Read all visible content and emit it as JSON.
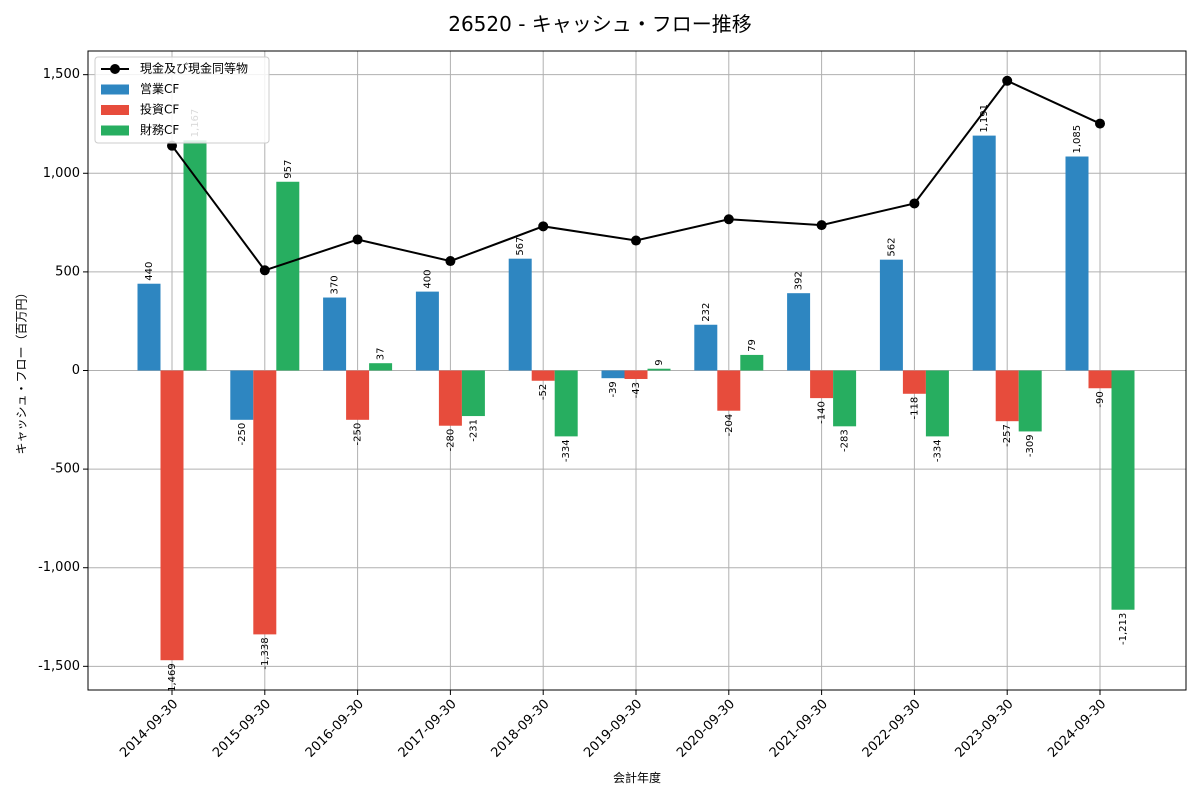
{
  "chart_data": {
    "type": "bar",
    "title": "26520 - キャッシュ・フロー推移",
    "xlabel": "会計年度",
    "ylabel": "キャッシュ・フロー（百万円）",
    "ylim": [
      -1620,
      1620
    ],
    "yticks": [
      -1500,
      -1000,
      -500,
      0,
      500,
      1000,
      1500
    ],
    "ytick_labels": [
      "-1,500",
      "-1,000",
      "-500",
      "0",
      "500",
      "1,000",
      "1,500"
    ],
    "grid": true,
    "legend_position": "top-left",
    "categories": [
      "2014-09-30",
      "2015-09-30",
      "2016-09-30",
      "2017-09-30",
      "2018-09-30",
      "2019-09-30",
      "2020-09-30",
      "2021-09-30",
      "2022-09-30",
      "2023-09-30",
      "2024-09-30"
    ],
    "series": [
      {
        "name": "営業CF",
        "kind": "bar",
        "color": "#2e86c1",
        "values": [
          440,
          -250,
          370,
          400,
          567,
          -39,
          232,
          392,
          562,
          1191,
          1085
        ],
        "labels": [
          "440",
          "-250",
          "370",
          "400",
          "567",
          "-39",
          "232",
          "392",
          "562",
          "1,191",
          "1,085"
        ]
      },
      {
        "name": "投資CF",
        "kind": "bar",
        "color": "#e74c3c",
        "values": [
          -1469,
          -1338,
          -250,
          -280,
          -52,
          -43,
          -204,
          -140,
          -118,
          -257,
          -90
        ],
        "labels": [
          "-1,469",
          "-1,338",
          "-250",
          "-280",
          "-52",
          "-43",
          "-204",
          "-140",
          "-118",
          "-257",
          "-90"
        ]
      },
      {
        "name": "財務CF",
        "kind": "bar",
        "color": "#27ae60",
        "values": [
          1167,
          957,
          37,
          -231,
          -334,
          9,
          79,
          -283,
          -334,
          -309,
          -1213
        ],
        "labels": [
          "1,167",
          "957",
          "37",
          "-231",
          "-334",
          "9",
          "79",
          "-283",
          "-334",
          "-309",
          "-1,213"
        ]
      },
      {
        "name": "現金及び現金同等物",
        "kind": "line",
        "color": "#000000",
        "values": [
          1140,
          508,
          664,
          555,
          731,
          659,
          767,
          737,
          847,
          1469,
          1252
        ]
      }
    ]
  }
}
